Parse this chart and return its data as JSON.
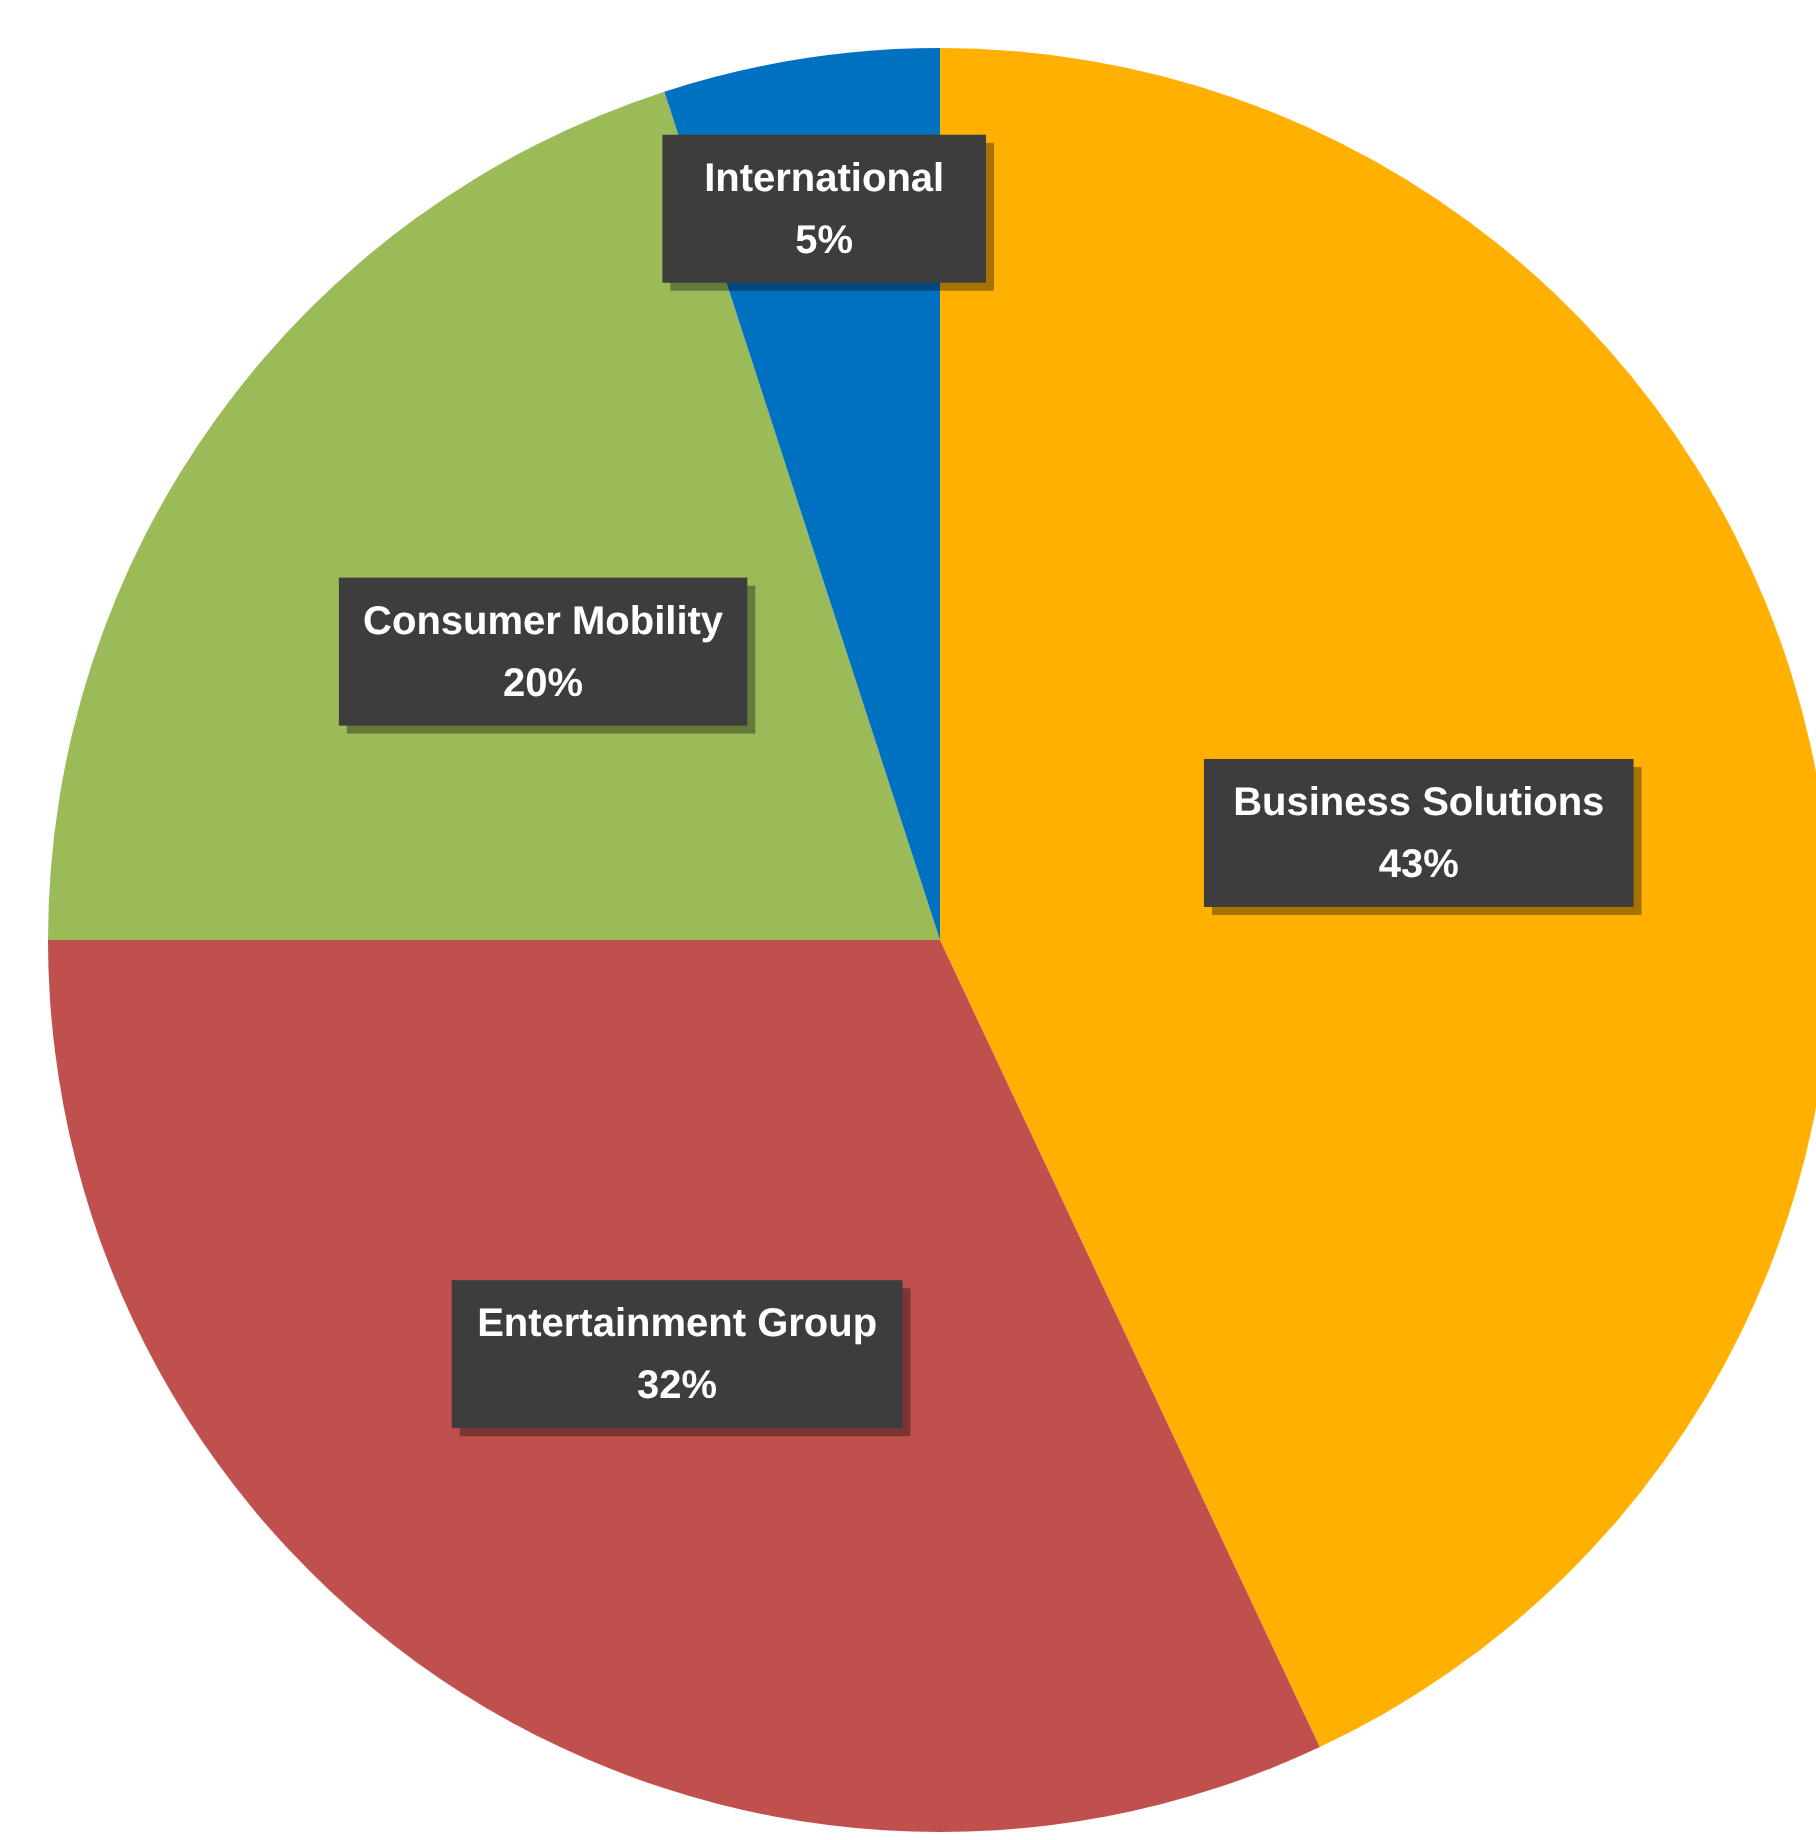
{
  "chart_data": {
    "type": "pie",
    "categories": [
      "Business Solutions",
      "Entertainment Group",
      "Consumer Mobility",
      "International"
    ],
    "values": [
      43,
      32,
      20,
      5
    ],
    "colors": [
      "#ffb000",
      "#c0504d",
      "#9bbb59",
      "#0070c0"
    ],
    "value_labels": [
      "43%",
      "32%",
      "20%",
      "5%"
    ]
  }
}
